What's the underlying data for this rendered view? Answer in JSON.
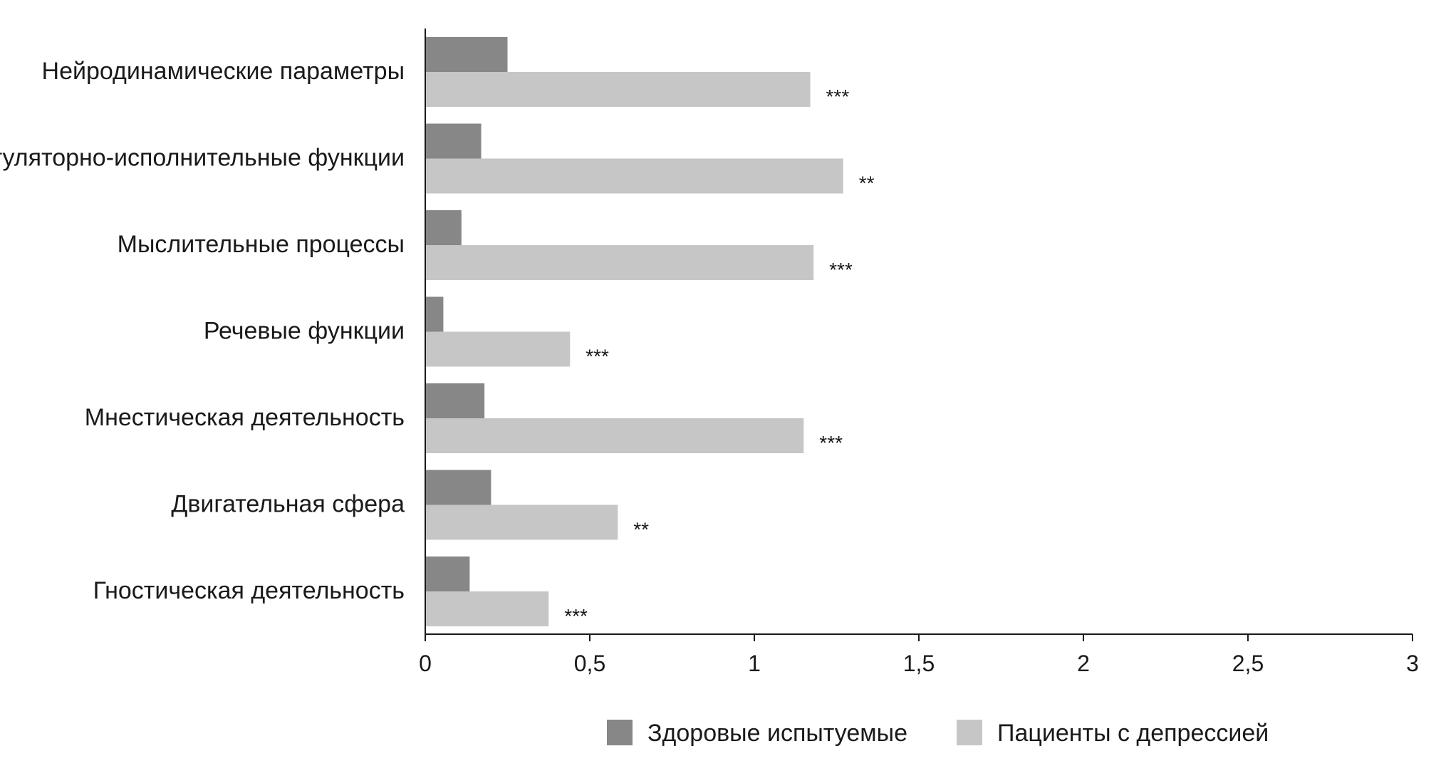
{
  "chart_data": {
    "type": "bar",
    "orientation": "horizontal",
    "categories": [
      "Нейродинамические параметры",
      "Регуляторно-исполнительные функции",
      "Мыслительные процессы",
      "Речевые функции",
      "Мнестическая деятельность",
      "Двигательная сфера",
      "Гностическая деятельность"
    ],
    "series": [
      {
        "name": "Здоровые испытуемые",
        "color": "#878787",
        "values": [
          0.25,
          0.17,
          0.11,
          0.055,
          0.18,
          0.2,
          0.135
        ]
      },
      {
        "name": "Пациенты с депрессией",
        "color": "#c6c6c6",
        "values": [
          1.17,
          1.27,
          1.18,
          0.44,
          1.15,
          0.585,
          0.375
        ],
        "annotations": [
          "***",
          "**",
          "***",
          "***",
          "***",
          "**",
          "***"
        ]
      }
    ],
    "xlim": [
      0,
      3
    ],
    "xticks": [
      0,
      0.5,
      1,
      1.5,
      2,
      2.5,
      3
    ],
    "xtick_labels": [
      "0",
      "0,5",
      "1",
      "1,5",
      "2",
      "2,5",
      "3"
    ],
    "title": "",
    "xlabel": "",
    "ylabel": "",
    "grid": false,
    "legend_position": "bottom-center"
  }
}
